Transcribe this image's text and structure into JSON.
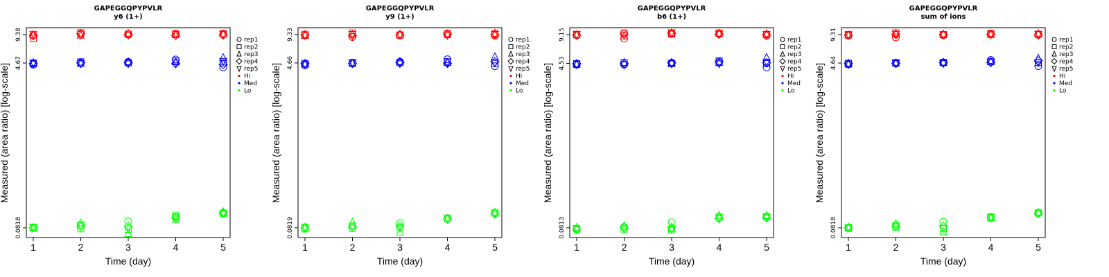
{
  "chart_data": [
    {
      "type": "scatter",
      "title": "GAPEGGQPYPVLR",
      "subtitle": "y6 (1+)",
      "xlabel": "Time (day)",
      "ylabel": "Measured (area ratio) [log-scale]",
      "log_y": true,
      "x_ticks": [
        1,
        2,
        3,
        4,
        5
      ],
      "y_tick_labels": [
        "0.0818",
        "4.67",
        "9.38"
      ],
      "y_tick_values": [
        0.0818,
        4.67,
        9.38
      ],
      "legend": {
        "placement": "right",
        "shape_entries": [
          "rep1",
          "rep2",
          "rep3",
          "rep4",
          "rep5"
        ],
        "color_entries": [
          "Hi",
          "Med",
          "Lo"
        ]
      },
      "series": [
        {
          "name": "Hi",
          "color": "#ff0000",
          "reps": [
            [
              9.2,
              9.5,
              9.4,
              9.6,
              9.4
            ],
            [
              8.6,
              9.8,
              9.5,
              9.4,
              9.6
            ],
            [
              9.3,
              9.2,
              9.6,
              9.3,
              9.5
            ],
            [
              9.1,
              9.6,
              9.4,
              9.2,
              9.3
            ],
            [
              9.5,
              9.4,
              9.3,
              9.6,
              9.5
            ]
          ]
        },
        {
          "name": "Med",
          "color": "#0000ff",
          "reps": [
            [
              4.5,
              4.7,
              4.8,
              5.1,
              4.2
            ],
            [
              4.6,
              4.8,
              4.7,
              4.9,
              4.7
            ],
            [
              4.7,
              4.6,
              4.8,
              4.8,
              5.3
            ],
            [
              4.6,
              4.7,
              4.7,
              4.6,
              4.5
            ],
            [
              4.7,
              4.6,
              4.6,
              4.7,
              4.9
            ]
          ]
        },
        {
          "name": "Lo",
          "color": "#00ff00",
          "reps": [
            [
              0.082,
              0.088,
              0.096,
              0.108,
              0.118
            ],
            [
              0.083,
              0.08,
              0.079,
              0.11,
              0.117
            ],
            [
              0.081,
              0.092,
              0.071,
              0.1,
              0.121
            ],
            [
              0.082,
              0.084,
              0.085,
              0.104,
              0.119
            ],
            [
              0.084,
              0.087,
              0.08,
              0.106,
              0.116
            ]
          ]
        }
      ]
    },
    {
      "type": "scatter",
      "title": "GAPEGGQPYPVLR",
      "subtitle": "y9 (1+)",
      "xlabel": "Time (day)",
      "ylabel": "Measured (area ratio) [log-scale]",
      "log_y": true,
      "x_ticks": [
        1,
        2,
        3,
        4,
        5
      ],
      "y_tick_labels": [
        "0.0819",
        "4.66",
        "9.33"
      ],
      "y_tick_values": [
        0.0819,
        4.66,
        9.33
      ],
      "legend": {
        "placement": "right",
        "shape_entries": [
          "rep1",
          "rep2",
          "rep3",
          "rep4",
          "rep5"
        ],
        "color_entries": [
          "Hi",
          "Med",
          "Lo"
        ]
      },
      "series": [
        {
          "name": "Hi",
          "color": "#ff0000",
          "reps": [
            [
              9.2,
              8.8,
              9.3,
              9.4,
              9.1
            ],
            [
              9.4,
              9.7,
              9.2,
              9.6,
              9.5
            ],
            [
              9.1,
              9.3,
              9.4,
              9.3,
              9.6
            ],
            [
              9.3,
              9.1,
              9.2,
              9.5,
              9.3
            ],
            [
              9.2,
              9.4,
              9.3,
              9.2,
              9.4
            ]
          ]
        },
        {
          "name": "Med",
          "color": "#0000ff",
          "reps": [
            [
              4.4,
              4.6,
              4.8,
              5.1,
              4.3
            ],
            [
              4.6,
              4.7,
              4.7,
              4.8,
              4.6
            ],
            [
              4.5,
              4.6,
              4.8,
              4.7,
              5.4
            ],
            [
              4.6,
              4.6,
              4.7,
              4.6,
              4.8
            ],
            [
              4.5,
              4.7,
              4.6,
              4.7,
              4.7
            ]
          ]
        },
        {
          "name": "Lo",
          "color": "#00ff00",
          "reps": [
            [
              0.082,
              0.087,
              0.092,
              0.102,
              0.117
            ],
            [
              0.08,
              0.081,
              0.083,
              0.104,
              0.118
            ],
            [
              0.083,
              0.094,
              0.073,
              0.103,
              0.12
            ],
            [
              0.081,
              0.083,
              0.086,
              0.101,
              0.115
            ],
            [
              0.084,
              0.085,
              0.082,
              0.104,
              0.118
            ]
          ]
        }
      ]
    },
    {
      "type": "scatter",
      "title": "GAPEGGQPYPVLR",
      "subtitle": "b6 (1+)",
      "xlabel": "Time (day)",
      "ylabel": "Measured (area ratio) [log-scale]",
      "log_y": true,
      "x_ticks": [
        1,
        2,
        3,
        4,
        5
      ],
      "y_tick_labels": [
        "0.0813",
        "4.53",
        "9.15"
      ],
      "y_tick_values": [
        0.0813,
        4.53,
        9.15
      ],
      "legend": {
        "placement": "right",
        "shape_entries": [
          "rep1",
          "rep2",
          "rep3",
          "rep4",
          "rep5"
        ],
        "color_entries": [
          "Hi",
          "Med",
          "Lo"
        ]
      },
      "series": [
        {
          "name": "Hi",
          "color": "#ff0000",
          "reps": [
            [
              9.0,
              8.3,
              9.4,
              9.3,
              8.9
            ],
            [
              9.2,
              9.5,
              9.3,
              9.5,
              9.2
            ],
            [
              9.1,
              8.8,
              9.5,
              9.4,
              9.3
            ],
            [
              9.0,
              9.3,
              9.4,
              9.2,
              9.1
            ],
            [
              9.2,
              9.1,
              9.6,
              9.3,
              9.2
            ]
          ]
        },
        {
          "name": "Med",
          "color": "#0000ff",
          "reps": [
            [
              4.4,
              4.4,
              4.6,
              4.7,
              4.1
            ],
            [
              4.5,
              4.6,
              4.5,
              4.8,
              4.5
            ],
            [
              4.4,
              4.6,
              4.6,
              4.6,
              5.2
            ],
            [
              4.5,
              4.5,
              4.6,
              4.7,
              4.6
            ],
            [
              4.4,
              4.4,
              4.5,
              4.5,
              4.7
            ]
          ]
        },
        {
          "name": "Lo",
          "color": "#00ff00",
          "reps": [
            [
              0.077,
              0.083,
              0.093,
              0.103,
              0.105
            ],
            [
              0.08,
              0.078,
              0.077,
              0.106,
              0.107
            ],
            [
              0.082,
              0.085,
              0.08,
              0.11,
              0.109
            ],
            [
              0.078,
              0.081,
              0.082,
              0.102,
              0.104
            ],
            [
              0.079,
              0.08,
              0.079,
              0.104,
              0.106
            ]
          ]
        }
      ]
    },
    {
      "type": "scatter",
      "title": "GAPEGGQPYPVLR",
      "subtitle": "sum of ions",
      "xlabel": "Time (day)",
      "ylabel": "Measured (area ratio) [log-scale]",
      "log_y": true,
      "x_ticks": [
        1,
        2,
        3,
        4,
        5
      ],
      "y_tick_labels": [
        "0.0818",
        "4.64",
        "9.31"
      ],
      "y_tick_values": [
        0.0818,
        4.64,
        9.31
      ],
      "legend": {
        "placement": "right",
        "shape_entries": [
          "rep1",
          "rep2",
          "rep3",
          "rep4",
          "rep5"
        ],
        "color_entries": [
          "Hi",
          "Med",
          "Lo"
        ]
      },
      "series": [
        {
          "name": "Hi",
          "color": "#ff0000",
          "reps": [
            [
              9.1,
              8.7,
              9.2,
              9.4,
              9.3
            ],
            [
              9.3,
              9.7,
              9.3,
              9.6,
              9.4
            ],
            [
              9.2,
              9.5,
              9.4,
              9.3,
              9.5
            ],
            [
              9.2,
              9.3,
              9.3,
              9.4,
              9.2
            ],
            [
              9.3,
              9.4,
              9.3,
              9.3,
              9.4
            ]
          ]
        },
        {
          "name": "Med",
          "color": "#0000ff",
          "reps": [
            [
              4.5,
              4.6,
              4.7,
              5.0,
              4.3
            ],
            [
              4.6,
              4.7,
              4.7,
              4.8,
              4.7
            ],
            [
              4.5,
              4.6,
              4.7,
              4.8,
              5.2
            ],
            [
              4.6,
              4.6,
              4.7,
              4.7,
              4.9
            ],
            [
              4.5,
              4.6,
              4.6,
              4.7,
              4.7
            ]
          ]
        },
        {
          "name": "Lo",
          "color": "#00ff00",
          "reps": [
            [
              0.082,
              0.087,
              0.095,
              0.105,
              0.117
            ],
            [
              0.081,
              0.083,
              0.08,
              0.107,
              0.118
            ],
            [
              0.083,
              0.09,
              0.074,
              0.104,
              0.119
            ],
            [
              0.082,
              0.084,
              0.085,
              0.105,
              0.116
            ],
            [
              0.083,
              0.086,
              0.081,
              0.106,
              0.117
            ]
          ]
        }
      ]
    }
  ]
}
